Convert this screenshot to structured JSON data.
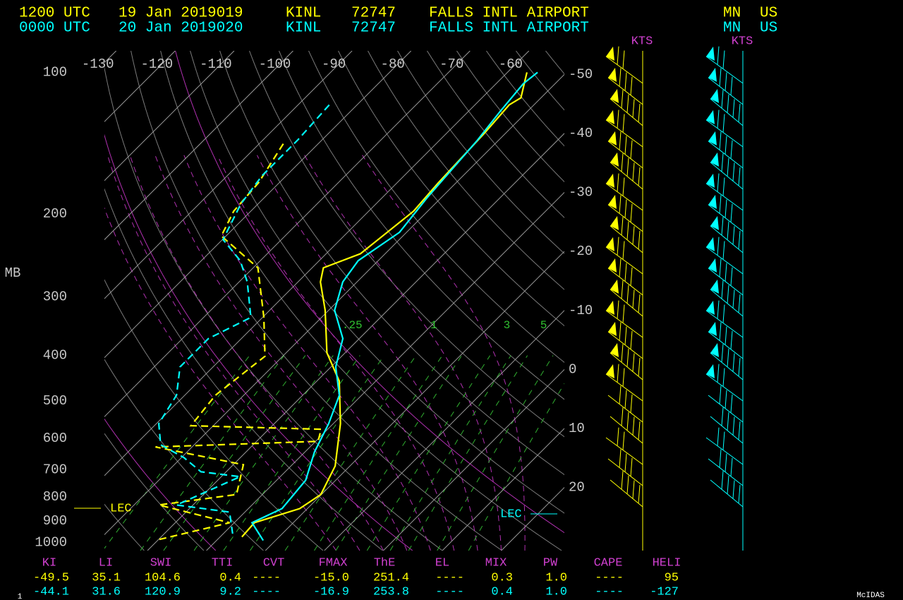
{
  "header": {
    "rows": [
      {
        "time": "1200 UTC",
        "date": "19 Jan 2019019",
        "station": "KINL",
        "id": "72747",
        "name": "FALLS INTL AIRPORT",
        "state": "MN",
        "country": "US"
      },
      {
        "time": "0000 UTC",
        "date": "20 Jan 2019020",
        "station": "KINL",
        "id": "72747",
        "name": "FALLS INTL AIRPORT",
        "state": "MN",
        "country": "US"
      }
    ]
  },
  "chart_data": {
    "type": "skewt",
    "y_label": "MB",
    "ylim": [
      1040,
      90
    ],
    "xlim": [
      -132,
      -54
    ],
    "yticks": [
      100,
      200,
      300,
      400,
      500,
      600,
      700,
      800,
      900,
      1000
    ],
    "top_temperature_ticks": [
      -130,
      -120,
      -110,
      -100,
      -90,
      -80,
      -70,
      -60
    ],
    "right_temperature_ticks": [
      -50,
      -40,
      -30,
      -20,
      -10,
      0,
      10,
      20
    ],
    "mixing_ratio_labels": [
      {
        "value": 0.25,
        "label": ".25"
      },
      1,
      3,
      5
    ],
    "wind_unit_labels": [
      "KTS",
      "KTS"
    ],
    "lec_labels": [
      "LEC",
      "LEC"
    ],
    "series": [
      {
        "color": "#ffff00",
        "style": "solid",
        "pressure": [
          100,
          113.3,
          117.3,
          134.7,
          171.8,
          197.3,
          226.7,
          243.0,
          260.4,
          279.1,
          320.6,
          394.7,
          453.5,
          558.4,
          687.5,
          790.2,
          846.7,
          907.2,
          972.6
        ],
        "temperature": [
          -56.7,
          -53.4,
          -54.2,
          -53.6,
          -53.0,
          -52.4,
          -53.6,
          -54.2,
          -58.1,
          -56.2,
          -50.6,
          -43.1,
          -36.2,
          -28.8,
          -22.5,
          -20.1,
          -21.3,
          -26.6,
          -26.3
        ]
      },
      {
        "color": "#00ffff",
        "style": "solid",
        "pressure": [
          100,
          105.7,
          121.4,
          139.5,
          184.1,
          218.9,
          251.5,
          279.1,
          320.6,
          368.3,
          423.1,
          486.0,
          558.4,
          641.5,
          736.8,
          846.7,
          907.2,
          989.5
        ],
        "temperature": [
          -54.9,
          -55.4,
          -54.6,
          -53.6,
          -52.4,
          -51.2,
          -53.4,
          -52.4,
          -49.0,
          -42.8,
          -39.2,
          -33.8,
          -30.8,
          -28.4,
          -25.1,
          -24.3,
          -27.0,
          -22.1
        ]
      },
      {
        "color": "#ffff00",
        "style": "dashed",
        "pressure": [
          141.9,
          171.8,
          197.3,
          222.8,
          260.4,
          331.9,
          401.6,
          486.0,
          564.3,
          574.1,
          609.0,
          626.1,
          682.8,
          790.2,
          831.9,
          907.2,
          989.5
        ],
        "temperature": [
          -85.9,
          -83.5,
          -82.9,
          -80.8,
          -69.2,
          -59.8,
          -53.0,
          -54.8,
          -53.8,
          -31.1,
          -29.6,
          -56.2,
          -38.3,
          -34.4,
          -45.8,
          -30.8,
          -40.4
        ]
      },
      {
        "color": "#00ffff",
        "style": "dashed",
        "pressure": [
          117.3,
          139.5,
          165.9,
          190.6,
          226.7,
          251.5,
          279.1,
          331.9,
          368.3,
          423.1,
          486.0,
          558.4,
          619.5,
          659.5,
          706.9,
          724.3,
          831.9,
          861.3,
          972.6
        ],
        "temperature": [
          -84.7,
          -84.1,
          -84.1,
          -82.9,
          -79.9,
          -73.4,
          -68.6,
          -62.0,
          -65.6,
          -65.6,
          -61.4,
          -59.6,
          -55.7,
          -49.6,
          -44.3,
          -36.8,
          -42.8,
          -32.6,
          -27.8
        ]
      }
    ]
  },
  "indices": {
    "headers": [
      "KI",
      "LI",
      "SWI",
      "TTI",
      "CVT",
      "FMAX",
      "ThE",
      "EL",
      "MIX",
      "PW",
      "CAPE",
      "HELI"
    ],
    "rows": [
      [
        "-49.5",
        "35.1",
        "104.6",
        "0.4",
        "----",
        "-15.0",
        "251.4",
        "----",
        "0.3",
        "1.0",
        "----",
        "95"
      ],
      [
        "-44.1",
        "31.6",
        "120.9",
        "9.2",
        "----",
        "-16.9",
        "253.8",
        "----",
        "0.4",
        "1.0",
        "----",
        "-127"
      ]
    ]
  },
  "footer": {
    "brand": "McIDAS",
    "frame": "1"
  }
}
